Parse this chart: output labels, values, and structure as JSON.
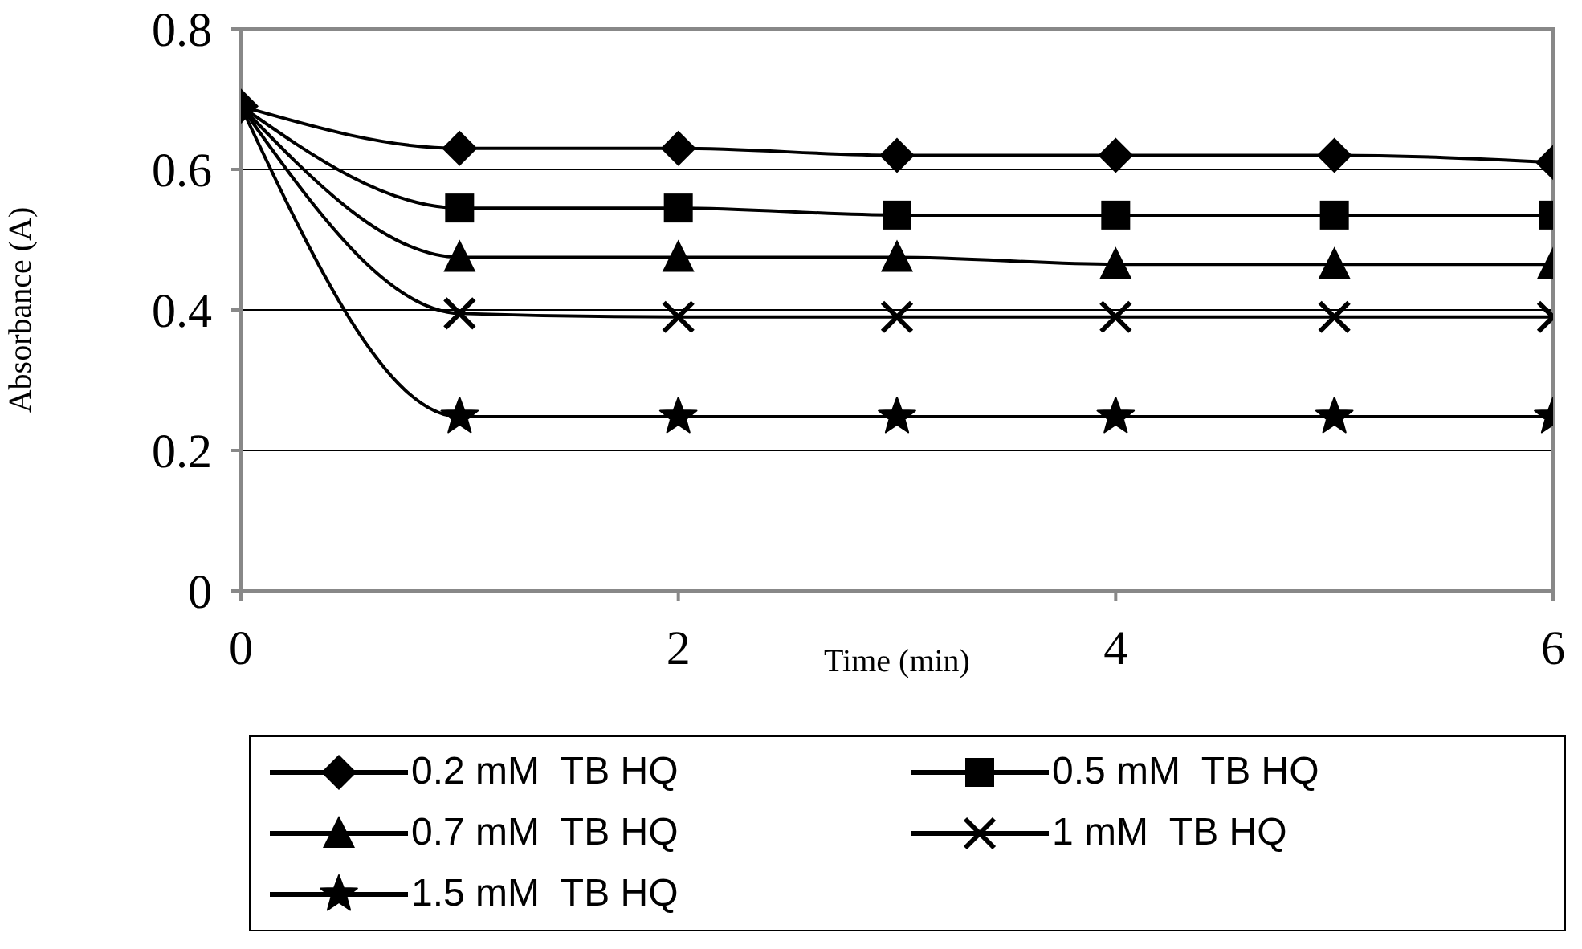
{
  "chart_data": {
    "type": "line",
    "xlabel": "Time (min)",
    "ylabel": "Absorbance (A)",
    "x": [
      0,
      1,
      2,
      3,
      4,
      5,
      6
    ],
    "xlim": [
      0,
      6
    ],
    "xticks": [
      0,
      2,
      4,
      6
    ],
    "ylim": [
      0,
      0.8
    ],
    "yticks": [
      0,
      0.2,
      0.4,
      0.6,
      0.8
    ],
    "grid": "y",
    "legend": "bottom",
    "line_style": "solid",
    "series": [
      {
        "name": "0.2 mM  TB HQ",
        "color": "#000000",
        "marker": "diamond",
        "values": [
          0.69,
          0.63,
          0.63,
          0.62,
          0.62,
          0.62,
          0.61
        ]
      },
      {
        "name": "0.5 mM  TB HQ",
        "color": "#000000",
        "marker": "square",
        "values": [
          0.69,
          0.545,
          0.545,
          0.535,
          0.535,
          0.535,
          0.535
        ]
      },
      {
        "name": "0.7 mM  TB HQ",
        "color": "#000000",
        "marker": "triangle",
        "values": [
          0.69,
          0.475,
          0.475,
          0.475,
          0.465,
          0.465,
          0.465
        ]
      },
      {
        "name": "1 mM  TB HQ",
        "color": "#000000",
        "marker": "cross",
        "values": [
          0.69,
          0.395,
          0.39,
          0.39,
          0.39,
          0.39,
          0.39
        ]
      },
      {
        "name": "1.5 mM  TB HQ",
        "color": "#000000",
        "marker": "star",
        "values": [
          0.69,
          0.248,
          0.248,
          0.248,
          0.248,
          0.248,
          0.248
        ]
      }
    ]
  }
}
